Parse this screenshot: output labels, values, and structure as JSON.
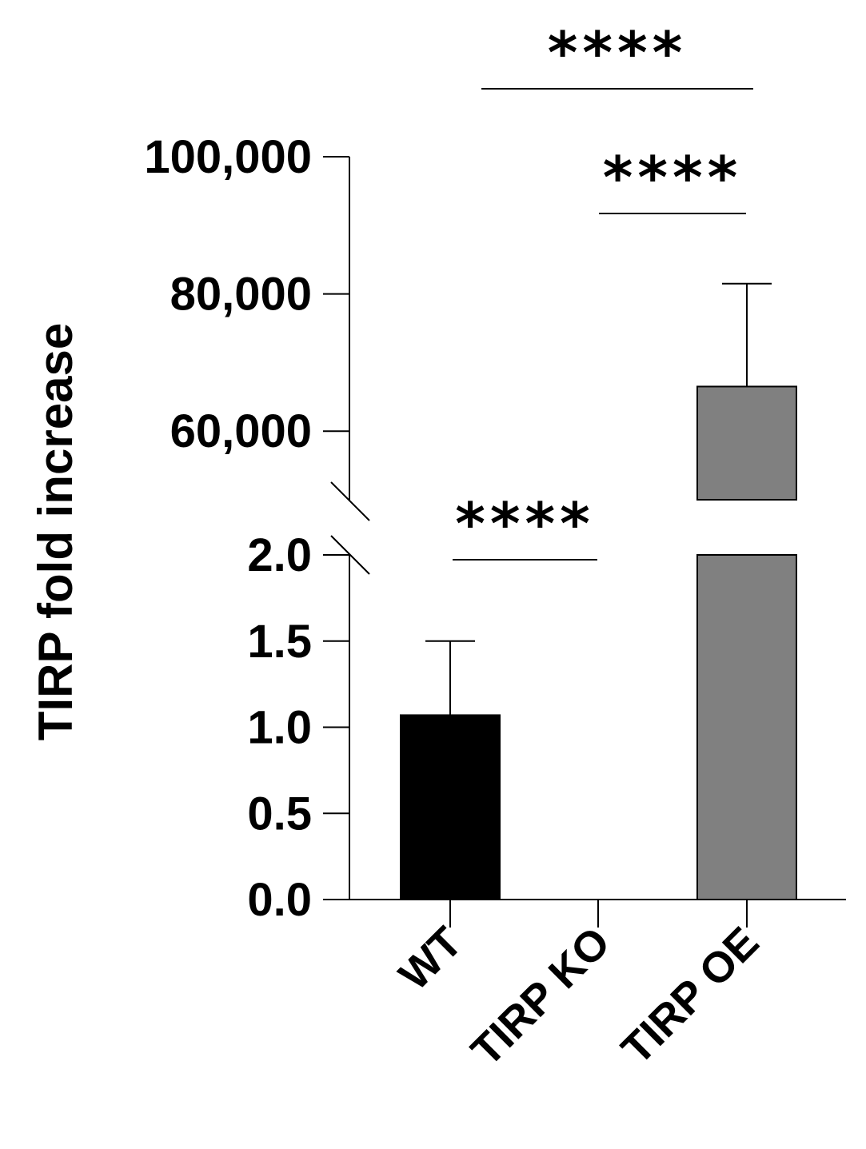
{
  "chart_data": {
    "type": "bar",
    "ylabel": "TIRP fold increase",
    "categories": [
      "WT",
      "TIRP KO",
      "TIRP OE"
    ],
    "values": [
      1.07,
      0.0,
      66500
    ],
    "errors": [
      0.43,
      0.0,
      15000
    ],
    "colors": [
      "#000000",
      "#000000",
      "#808080"
    ],
    "y_axis_broken": true,
    "y_lower_segment": {
      "range": [
        0,
        2.0
      ],
      "ticks": [
        0.0,
        0.5,
        1.0,
        1.5,
        2.0
      ],
      "tick_labels": [
        "0.0",
        "0.5",
        "1.0",
        "1.5",
        "2.0"
      ]
    },
    "y_upper_segment": {
      "range": [
        50000,
        100000
      ],
      "ticks": [
        60000,
        80000,
        100000
      ],
      "tick_labels": [
        "60,000",
        "80,000",
        "100,000"
      ]
    },
    "significance": [
      {
        "from": "WT",
        "to": "TIRP KO",
        "label": "****"
      },
      {
        "from": "TIRP KO",
        "to": "TIRP OE",
        "label": "****"
      },
      {
        "from": "WT",
        "to": "TIRP OE",
        "label": "****"
      }
    ]
  }
}
